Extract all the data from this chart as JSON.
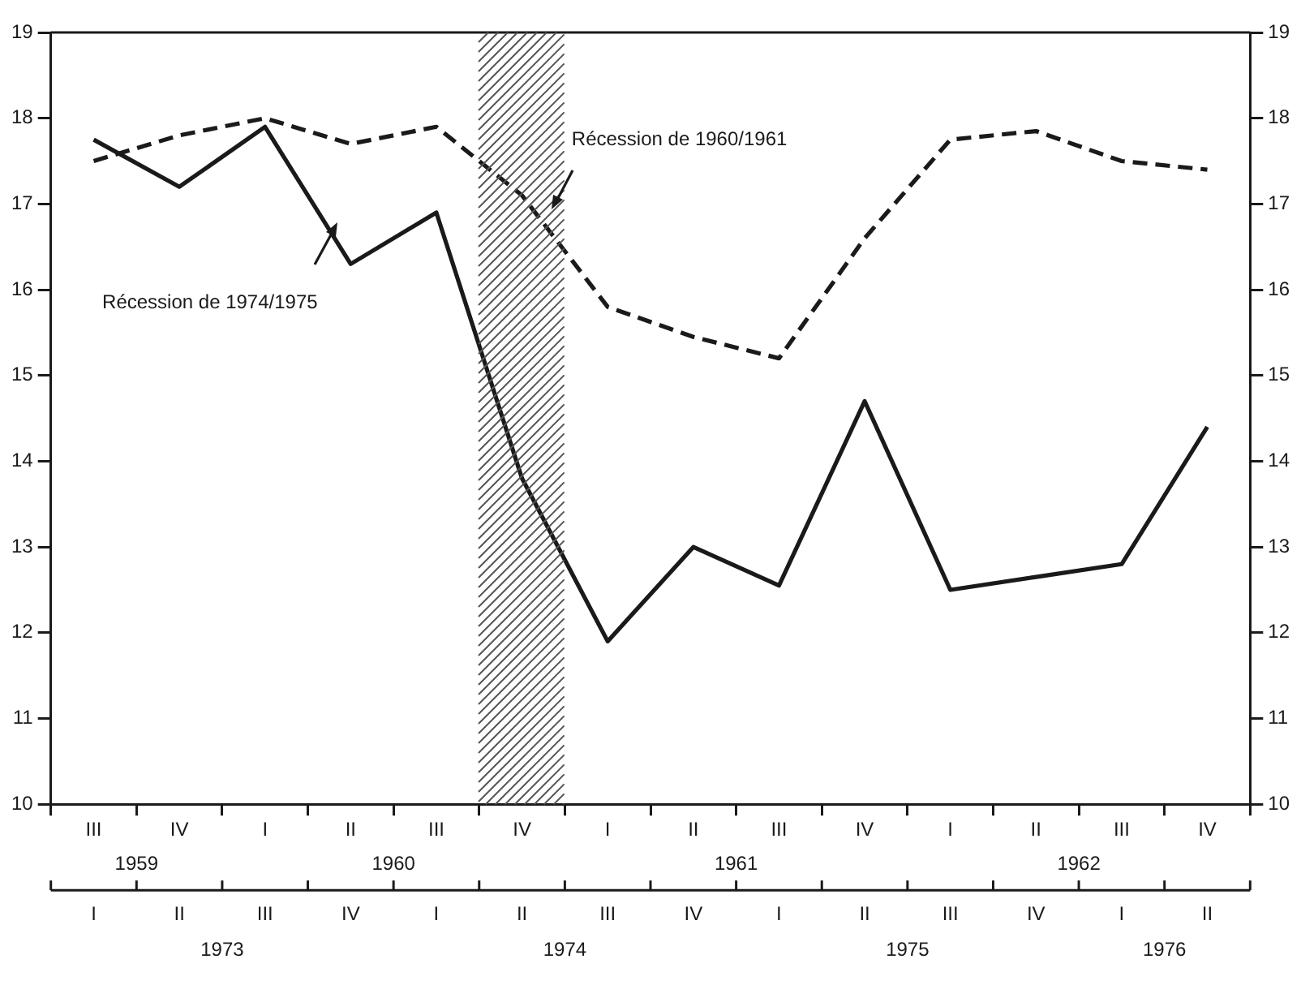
{
  "chart_data": {
    "type": "line",
    "categories": [
      "III",
      "IV",
      "I",
      "II",
      "III",
      "IV",
      "I",
      "II",
      "III",
      "IV",
      "I",
      "II",
      "III",
      "IV"
    ],
    "series": [
      {
        "name": "Récession de 1974/1975",
        "color": "#1a1a1a",
        "line_style": "solid",
        "values": [
          17.75,
          17.2,
          17.9,
          16.3,
          16.9,
          13.8,
          11.9,
          13.0,
          12.55,
          14.7,
          12.5,
          12.65,
          12.8,
          14.4
        ]
      },
      {
        "name": "Récession de 1960/1961",
        "color": "#1a1a1a",
        "line_style": "dashed",
        "values": [
          17.5,
          17.8,
          18.0,
          17.7,
          17.9,
          17.1,
          15.8,
          15.45,
          15.2,
          16.6,
          17.75,
          17.85,
          17.5,
          17.4
        ]
      }
    ],
    "ylim": [
      10,
      19
    ],
    "yticks": [
      10,
      11,
      12,
      13,
      14,
      15,
      16,
      17,
      18,
      19
    ],
    "y2lim": [
      10,
      19
    ],
    "y2ticks": [
      10,
      11,
      12,
      13,
      14,
      15,
      16,
      17,
      18,
      19
    ],
    "annotations": [
      "1959",
      "1960",
      "1961",
      "1962",
      "I",
      "II",
      "III",
      "IV",
      "I",
      "II",
      "III",
      "IV",
      "I",
      "II",
      "III",
      "IV",
      "I",
      "II",
      "1973",
      "1974",
      "1975",
      "1976"
    ],
    "grid": false,
    "legend": false,
    "marker": "none"
  }
}
